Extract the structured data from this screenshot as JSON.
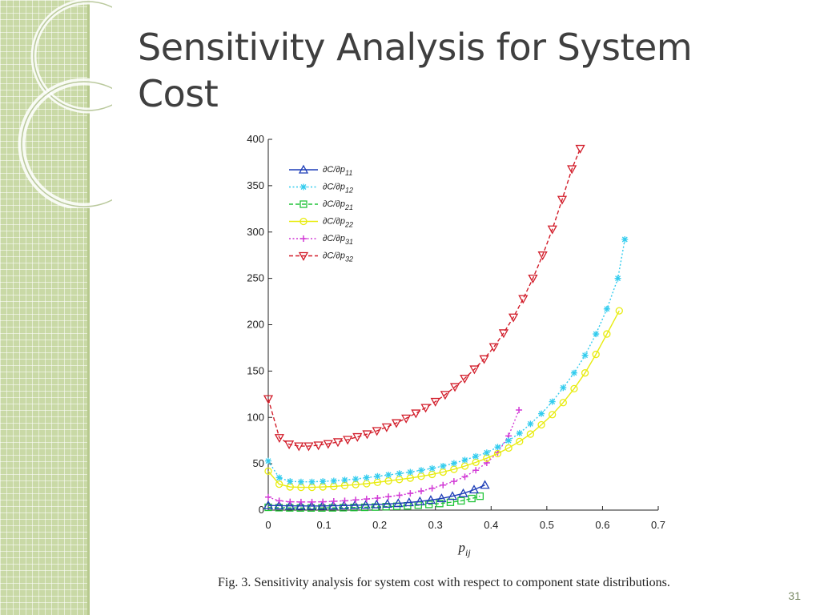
{
  "slide": {
    "title": "Sensitivity Analysis for System Cost",
    "caption": "Fig. 3.  Sensitivity analysis for system cost with respect to component state distributions.",
    "page_number": "31"
  },
  "chart_data": {
    "type": "line",
    "title": "",
    "xlabel": "p",
    "xlabel_subscript": "ij",
    "ylabel": "",
    "xlim": [
      0,
      0.7
    ],
    "ylim": [
      0,
      400
    ],
    "xticks": [
      "0",
      "0.1",
      "0.2",
      "0.3",
      "0.4",
      "0.5",
      "0.6",
      "0.7"
    ],
    "yticks": [
      "0",
      "50",
      "100",
      "150",
      "200",
      "250",
      "300",
      "350",
      "400"
    ],
    "grid": false,
    "legend_position": "top-left",
    "series": [
      {
        "name": "∂C/∂p",
        "subscript": "11",
        "color": "#1f3fb8",
        "marker": "triangle-up",
        "line_style": "solid",
        "x": [
          0,
          0.0194,
          0.0389,
          0.0583,
          0.0778,
          0.0972,
          0.1167,
          0.1361,
          0.1556,
          0.175,
          0.1944,
          0.2139,
          0.2333,
          0.2528,
          0.2722,
          0.2917,
          0.3111,
          0.3306,
          0.35,
          0.3694,
          0.3889
        ],
        "y": [
          5,
          4.8,
          4.6,
          4.5,
          4.4,
          4.5,
          4.7,
          4.9,
          5.2,
          5.5,
          6,
          6.6,
          7.3,
          8.2,
          9.3,
          10.8,
          12.6,
          15,
          18,
          22,
          27
        ]
      },
      {
        "name": "∂C/∂p",
        "subscript": "12",
        "color": "#33ccee",
        "marker": "star",
        "line_style": "dotted",
        "x": [
          0,
          0.0196,
          0.0392,
          0.0588,
          0.0784,
          0.098,
          0.1176,
          0.1373,
          0.1569,
          0.1765,
          0.1961,
          0.2157,
          0.2353,
          0.2549,
          0.2745,
          0.2941,
          0.3137,
          0.3333,
          0.3529,
          0.3725,
          0.3922,
          0.4118,
          0.4314,
          0.451,
          0.4706,
          0.4902,
          0.5098,
          0.5294,
          0.549,
          0.5686,
          0.5882,
          0.6078,
          0.6275,
          0.64
        ],
        "y": [
          53,
          35,
          31,
          30.5,
          30.5,
          31,
          31.5,
          32.5,
          33.5,
          35,
          36.5,
          38,
          39.5,
          41,
          43,
          45,
          47.5,
          50.5,
          54,
          58,
          62,
          68,
          75,
          83,
          93,
          104,
          117,
          132,
          148,
          167,
          190,
          217,
          250,
          292
        ]
      },
      {
        "name": "∂C/∂p",
        "subscript": "21",
        "color": "#22c43a",
        "marker": "square",
        "line_style": "dashed",
        "x": [
          0,
          0.0192,
          0.0385,
          0.0577,
          0.0769,
          0.0962,
          0.1154,
          0.1346,
          0.1538,
          0.1731,
          0.1923,
          0.2115,
          0.2308,
          0.25,
          0.2692,
          0.2885,
          0.3077,
          0.3269,
          0.3462,
          0.3654,
          0.38
        ],
        "y": [
          3,
          2.6,
          2.4,
          2.3,
          2.3,
          2.3,
          2.4,
          2.6,
          2.8,
          3,
          3.3,
          3.7,
          4.1,
          4.6,
          5.3,
          6.1,
          7.1,
          8.4,
          10,
          12.5,
          15
        ]
      },
      {
        "name": "∂C/∂p",
        "subscript": "22",
        "color": "#e8ec10",
        "marker": "circle",
        "line_style": "solid",
        "x": [
          0,
          0.0196,
          0.0392,
          0.0588,
          0.0784,
          0.098,
          0.1176,
          0.1373,
          0.1569,
          0.1765,
          0.1961,
          0.2157,
          0.2353,
          0.2549,
          0.2745,
          0.2941,
          0.3137,
          0.3333,
          0.3529,
          0.3725,
          0.3922,
          0.4118,
          0.4314,
          0.451,
          0.4706,
          0.4902,
          0.5098,
          0.5294,
          0.549,
          0.5686,
          0.5882,
          0.6078,
          0.63
        ],
        "y": [
          42,
          28,
          25,
          24.5,
          24.5,
          25,
          25.5,
          26.5,
          27.5,
          28.5,
          30,
          31.5,
          33,
          34.5,
          36.5,
          38.5,
          41,
          44,
          47.5,
          51.5,
          56,
          61,
          67,
          74,
          82,
          92,
          103,
          116,
          131,
          148,
          168,
          190,
          215
        ]
      },
      {
        "name": "∂C/∂p",
        "subscript": "31",
        "color": "#d23ad6",
        "marker": "plus",
        "line_style": "dotted",
        "x": [
          0,
          0.0196,
          0.0392,
          0.0588,
          0.0784,
          0.098,
          0.1176,
          0.1373,
          0.1569,
          0.1765,
          0.1961,
          0.2157,
          0.2353,
          0.2549,
          0.2745,
          0.2941,
          0.3137,
          0.3333,
          0.3529,
          0.3725,
          0.3922,
          0.4118,
          0.4314,
          0.45
        ],
        "y": [
          14,
          10,
          9,
          8.8,
          8.8,
          9,
          9.5,
          10,
          11,
          12,
          13,
          14.5,
          16,
          18,
          20.5,
          23.5,
          27,
          31,
          36,
          43,
          51,
          62,
          80,
          108
        ]
      },
      {
        "name": "∂C/∂p",
        "subscript": "32",
        "color": "#d21d2a",
        "marker": "triangle-down",
        "line_style": "dashed",
        "x": [
          0,
          0.02,
          0.0375,
          0.055,
          0.0725,
          0.09,
          0.1075,
          0.125,
          0.1425,
          0.16,
          0.1775,
          0.195,
          0.2125,
          0.23,
          0.2475,
          0.265,
          0.2825,
          0.3,
          0.3175,
          0.335,
          0.3525,
          0.37,
          0.3875,
          0.405,
          0.4225,
          0.44,
          0.4575,
          0.475,
          0.4925,
          0.51,
          0.5275,
          0.545,
          0.56
        ],
        "y": [
          120,
          78,
          71,
          69,
          69,
          70,
          71.5,
          73.5,
          76,
          79,
          82,
          85.5,
          89.5,
          94,
          99,
          104.5,
          110.5,
          117,
          124.5,
          133,
          142,
          152,
          163,
          176,
          191,
          208,
          228,
          250,
          275,
          303,
          335,
          368,
          390
        ]
      }
    ]
  }
}
